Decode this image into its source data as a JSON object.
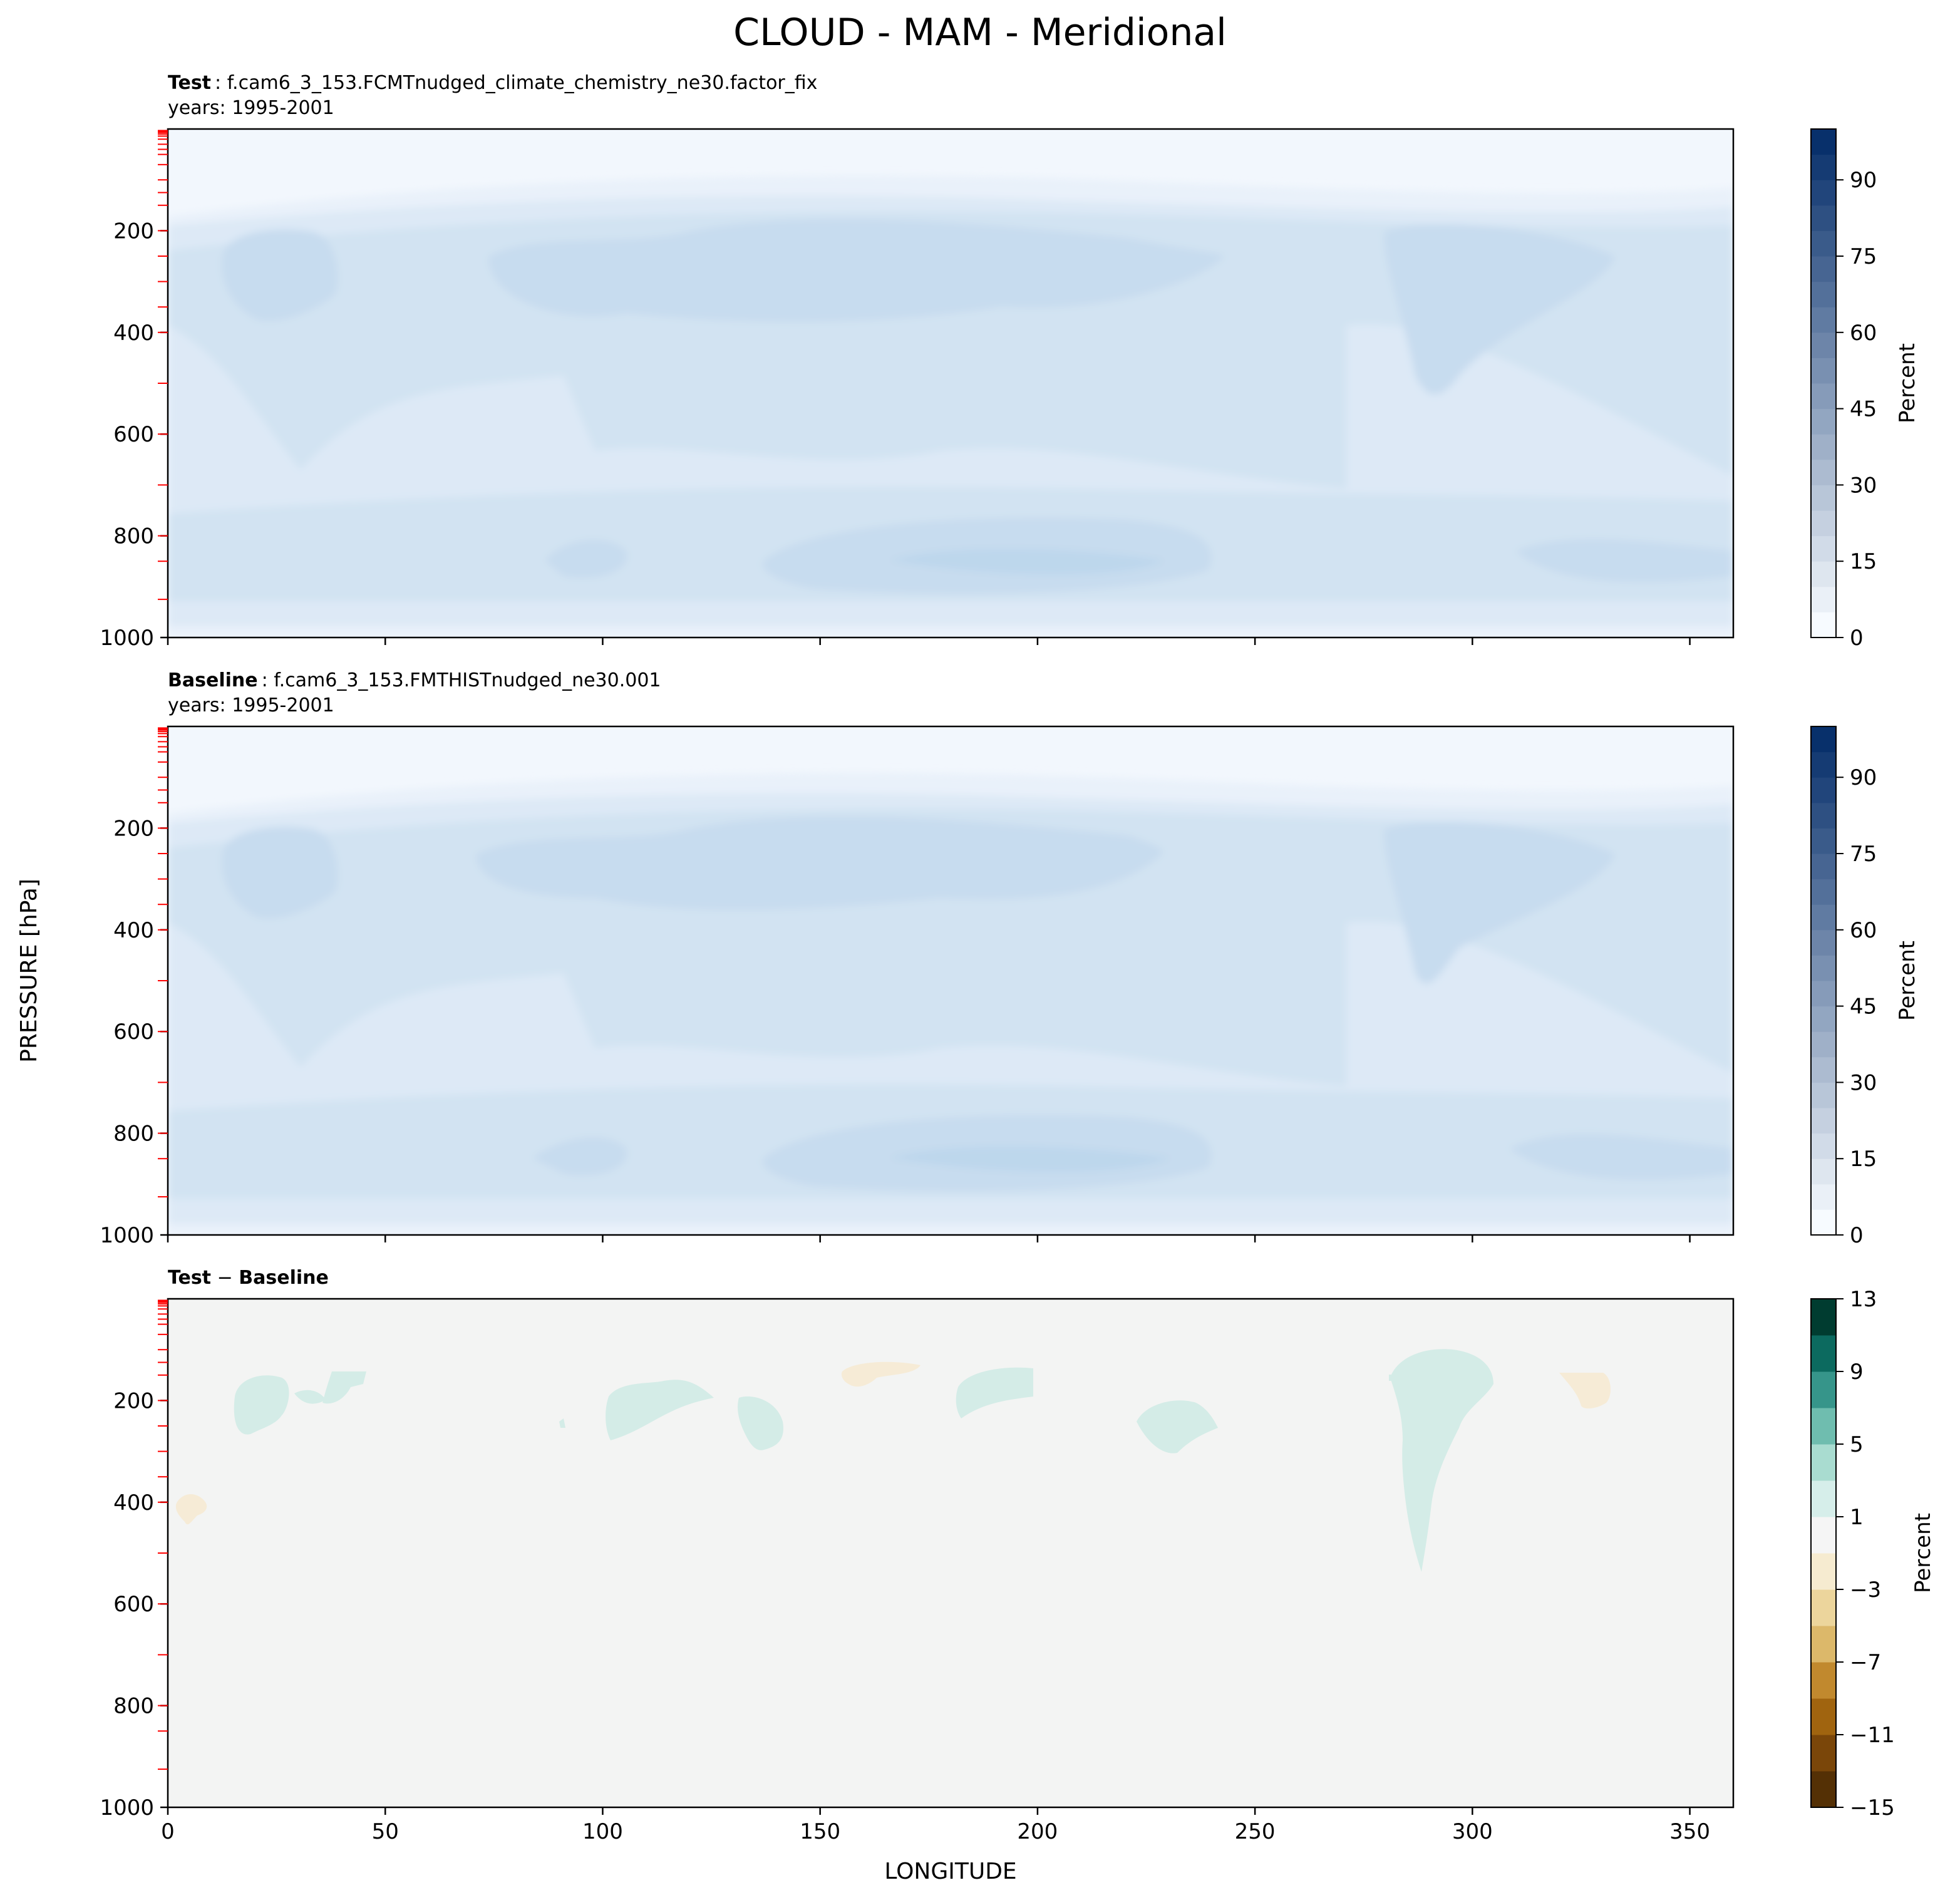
{
  "figure": {
    "title": "CLOUD - MAM - Meridional",
    "ylabel": "PRESSURE [hPa]",
    "xlabel": "LONGITUDE"
  },
  "colorbar_label": "Percent",
  "chart_data": [
    {
      "type": "heatmap",
      "header_bold": "Test",
      "header_case": ": f.cam6_3_153.FCMTnudged_climate_chemistry_ne30.factor_fix",
      "header_years": "years: 1995-2001",
      "xlim": [
        0,
        360
      ],
      "ylim": [
        1000,
        0
      ],
      "x_ticks": [
        0,
        50,
        100,
        150,
        200,
        250,
        300,
        350
      ],
      "y_ticks": [
        200,
        400,
        600,
        800,
        1000
      ],
      "colorbar": {
        "cmap": "Blues",
        "levels": [
          0,
          100
        ],
        "ticks": [
          0,
          15,
          30,
          45,
          60,
          75,
          90
        ]
      },
      "values_description_range_percent": [
        0,
        30
      ],
      "regions": [
        {
          "band": "upper",
          "p_range": [
            200,
            400
          ],
          "value": 22
        },
        {
          "band": "low",
          "p_range": [
            780,
            930
          ],
          "value": 25
        }
      ]
    },
    {
      "type": "heatmap",
      "header_bold": "Baseline",
      "header_case": ": f.cam6_3_153.FMTHISTnudged_ne30.001",
      "header_years": "years: 1995-2001",
      "xlim": [
        0,
        360
      ],
      "ylim": [
        1000,
        0
      ],
      "x_ticks": [
        0,
        50,
        100,
        150,
        200,
        250,
        300,
        350
      ],
      "y_ticks": [
        200,
        400,
        600,
        800,
        1000
      ],
      "colorbar": {
        "cmap": "Blues",
        "levels": [
          0,
          100
        ],
        "ticks": [
          0,
          15,
          30,
          45,
          60,
          75,
          90
        ]
      },
      "regions": [
        {
          "band": "upper",
          "p_range": [
            200,
            400
          ],
          "value": 22
        },
        {
          "band": "low",
          "p_range": [
            780,
            930
          ],
          "value": 25
        }
      ]
    },
    {
      "type": "heatmap",
      "header_bold": "Test",
      "header_sep": " − ",
      "header_bold2": "Baseline",
      "xlim": [
        0,
        360
      ],
      "ylim": [
        1000,
        0
      ],
      "x_ticks": [
        0,
        50,
        100,
        150,
        200,
        250,
        300,
        350
      ],
      "y_ticks": [
        200,
        400,
        600,
        800,
        1000
      ],
      "colorbar": {
        "cmap": "BrBG",
        "levels": [
          -15,
          13
        ],
        "ticks": [
          13,
          9,
          5,
          1,
          -3,
          -7,
          -11,
          -15
        ]
      },
      "positive_patches_lon": [
        [
          17,
          45
        ],
        [
          100,
          125
        ],
        [
          131,
          141
        ],
        [
          181,
          199
        ],
        [
          222,
          240
        ],
        [
          280,
          302
        ]
      ],
      "negative_patches_lon": [
        [
          3,
          9
        ],
        [
          155,
          172
        ],
        [
          318,
          332
        ]
      ]
    }
  ],
  "colors": {
    "blues_bg": "#f2f7fd",
    "blues_l1": "#e9f1fa",
    "blues_l2": "#dde9f6",
    "blues_l3": "#d2e3f2",
    "blues_l4": "#c7dcef",
    "blues_l5": "#bdd7ec",
    "diff_bg": "#f3f4f3",
    "diff_pos": "#d4ece7",
    "diff_neg": "#f6ebd6",
    "tick_red": "#ff0000"
  }
}
